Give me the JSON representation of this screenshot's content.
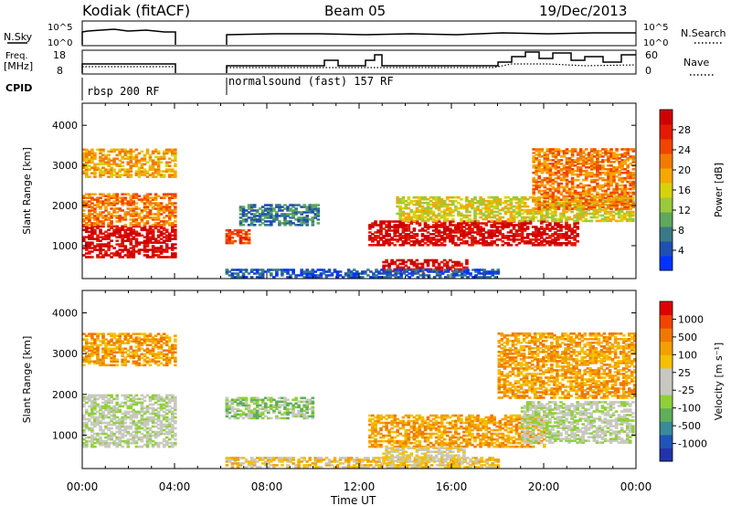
{
  "header": {
    "station": "Kodiak (fitACF)",
    "beam": "Beam 05",
    "date": "19/Dec/2013"
  },
  "top_panels": {
    "nsky_label": "N.Sky",
    "nsky_ticks": [
      "10^5",
      "10^0"
    ],
    "nsearch_label": "N.Search",
    "nsearch_ticks": [
      "10^5",
      "10^0"
    ],
    "freq_label_1": "Freq.",
    "freq_label_2": "[MHz]",
    "freq_ticks": [
      "18",
      "8"
    ],
    "nave_label": "Nave",
    "nave_ticks": [
      "60",
      "0"
    ],
    "cpid_label": "CPID",
    "cpid_segments": [
      {
        "label": "rbsp 200 RF",
        "start_hour": 0,
        "end_hour": 4
      },
      {
        "label": "normalsound (fast) 157 RF",
        "start_hour": 6.1,
        "end_hour": 24
      }
    ]
  },
  "chart_data": [
    {
      "type": "heatmap",
      "title": "",
      "quantity": "Power",
      "xlabel": "Time UT",
      "ylabel": "Slant Range [km]",
      "xlim": [
        0,
        24
      ],
      "ylim": [
        180,
        4550
      ],
      "x_ticks": [
        "00:00",
        "04:00",
        "08:00",
        "12:00",
        "16:00",
        "20:00",
        "00:00"
      ],
      "y_ticks": [
        1000,
        2000,
        3000,
        4000
      ],
      "data_gap_hours": [
        4,
        6.1
      ],
      "colorbar": {
        "label": "Power [dB]",
        "ticks": [
          "28",
          "24",
          "20",
          "16",
          "12",
          "8",
          "4"
        ],
        "colors": [
          "#0033ff",
          "#1f4fb0",
          "#3a7a86",
          "#5ea85c",
          "#9ac93a",
          "#d8d20a",
          "#f6a800",
          "#f47a00",
          "#f04400",
          "#e41b00",
          "#d00000"
        ]
      },
      "bands": [
        {
          "t0": 0,
          "t1": 4,
          "r0": 700,
          "r1": 1500,
          "level": 10
        },
        {
          "t0": 0,
          "t1": 4,
          "r0": 1500,
          "r1": 2300,
          "level": 7
        },
        {
          "t0": 0,
          "t1": 4,
          "r0": 2700,
          "r1": 3400,
          "level": 6
        },
        {
          "t0": 6.2,
          "t1": 7.2,
          "r0": 1050,
          "r1": 1400,
          "level": 8
        },
        {
          "t0": 6.8,
          "t1": 10.2,
          "r0": 1500,
          "r1": 2000,
          "level": 2
        },
        {
          "t0": 12.4,
          "t1": 21.5,
          "r0": 1000,
          "r1": 1600,
          "level": 10
        },
        {
          "t0": 13.6,
          "t1": 23.9,
          "r0": 1600,
          "r1": 2200,
          "level": 5
        },
        {
          "t0": 13,
          "t1": 16.6,
          "r0": 350,
          "r1": 650,
          "level": 10
        },
        {
          "t0": 6.2,
          "t1": 18,
          "r0": 200,
          "r1": 400,
          "level": 1
        },
        {
          "t0": 19.5,
          "t1": 23.9,
          "r0": 1900,
          "r1": 3400,
          "level": 7
        }
      ]
    },
    {
      "type": "heatmap",
      "title": "",
      "quantity": "Velocity",
      "xlabel": "Time UT",
      "ylabel": "Slant Range [km]",
      "xlim": [
        0,
        24
      ],
      "ylim": [
        180,
        4550
      ],
      "x_ticks": [
        "00:00",
        "04:00",
        "08:00",
        "12:00",
        "16:00",
        "20:00",
        "00:00"
      ],
      "y_ticks": [
        1000,
        2000,
        3000,
        4000
      ],
      "data_gap_hours": [
        4,
        6.1
      ],
      "colorbar": {
        "label": "Velocity [m s⁻¹]",
        "ticks": [
          "1000",
          "500",
          "100",
          "25",
          "-25",
          "-100",
          "-500",
          "-1000"
        ],
        "colors": [
          "#2233aa",
          "#1f55b8",
          "#3a8a9a",
          "#5fae5a",
          "#8fd038",
          "#c8c8c0",
          "#c8c8c0",
          "#f5c000",
          "#f2a000",
          "#f07800",
          "#f04400",
          "#e00000"
        ]
      },
      "bands": [
        {
          "t0": 0,
          "t1": 4,
          "r0": 700,
          "r1": 2000,
          "level": 5
        },
        {
          "t0": 0,
          "t1": 4,
          "r0": 2700,
          "r1": 3500,
          "level": 8
        },
        {
          "t0": 6.2,
          "t1": 10,
          "r0": 1400,
          "r1": 1900,
          "level": 4
        },
        {
          "t0": 6.2,
          "t1": 18,
          "r0": 200,
          "r1": 450,
          "level": 7
        },
        {
          "t0": 12.4,
          "t1": 20,
          "r0": 700,
          "r1": 1500,
          "level": 8
        },
        {
          "t0": 13,
          "t1": 16.5,
          "r0": 350,
          "r1": 700,
          "level": 6
        },
        {
          "t0": 19,
          "t1": 23.9,
          "r0": 800,
          "r1": 1800,
          "level": 5
        },
        {
          "t0": 18,
          "t1": 23.9,
          "r0": 1900,
          "r1": 3500,
          "level": 8
        }
      ]
    }
  ]
}
